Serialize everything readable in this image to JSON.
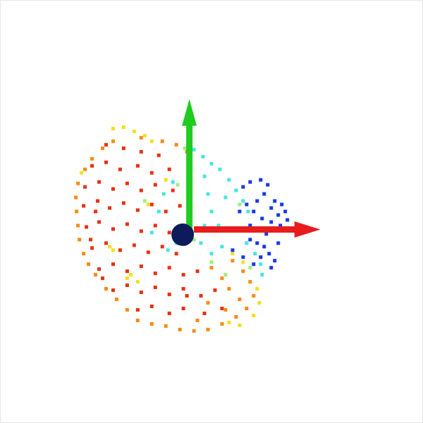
{
  "chart_data": {
    "type": "scatter",
    "marker": "square",
    "tick_labels": false,
    "grid": false,
    "xlim": [
      0,
      600
    ],
    "ylim": [
      600,
      0
    ],
    "series": [
      {
        "color": "#e8300e",
        "x": [
          150,
          175,
          200,
          225,
          130,
          150,
          170,
          195,
          215,
          240,
          120,
          140,
          160,
          180,
          200,
          220,
          245,
          118,
          138,
          155,
          175,
          195,
          215,
          235,
          255,
          122,
          140,
          160,
          180,
          200,
          220,
          240,
          130,
          150,
          170,
          190,
          210,
          230,
          250,
          140,
          160,
          180,
          200,
          220,
          240,
          260,
          280,
          160,
          180,
          200,
          220,
          240,
          260,
          285,
          305,
          195,
          215,
          240,
          260,
          290,
          315,
          135,
          128,
          145,
          265
        ],
        "y": [
          205,
          210,
          215,
          220,
          235,
          230,
          240,
          235,
          245,
          240,
          265,
          258,
          268,
          260,
          270,
          262,
          270,
          292,
          285,
          295,
          288,
          298,
          290,
          300,
          292,
          322,
          315,
          325,
          318,
          328,
          320,
          330,
          352,
          345,
          355,
          348,
          358,
          350,
          360,
          382,
          375,
          385,
          378,
          388,
          380,
          390,
          385,
          412,
          405,
          415,
          408,
          418,
          410,
          420,
          412,
          440,
          435,
          445,
          438,
          445,
          438,
          300,
          340,
          395,
          420
        ]
      },
      {
        "color": "#f88a14",
        "x": [
          120,
          130,
          145,
          160,
          200,
          230,
          250,
          265,
          110,
          107,
          108,
          110,
          112,
          118,
          125,
          135,
          150,
          165,
          180,
          195,
          215,
          235,
          255,
          275,
          295,
          315,
          335,
          350,
          330,
          345,
          355,
          360,
          300,
          315,
          325,
          340,
          295,
          280,
          320
        ],
        "y": [
          240,
          225,
          210,
          200,
          195,
          200,
          205,
          215,
          260,
          280,
          300,
          320,
          340,
          360,
          375,
          390,
          410,
          425,
          440,
          455,
          460,
          463,
          468,
          470,
          468,
          460,
          450,
          438,
          370,
          385,
          400,
          420,
          380,
          395,
          410,
          425,
          430,
          455,
          440
        ]
      },
      {
        "color": "#f2e01e",
        "x": [
          160,
          175,
          190,
          205,
          215,
          115,
          155,
          160,
          185,
          180,
          235,
          210,
          330,
          345,
          365,
          368,
          360,
          340,
          325,
          195
        ],
        "y": [
          182,
          180,
          186,
          192,
          200,
          245,
          350,
          355,
          390,
          395,
          255,
          290,
          360,
          372,
          410,
          430,
          448,
          462,
          458,
          400
        ]
      },
      {
        "color": "#9af27a",
        "x": [
          262,
          252,
          275,
          300,
          340,
          355,
          320,
          205
        ],
        "y": [
          210,
          262,
          340,
          372,
          290,
          380,
          390,
          285
        ]
      },
      {
        "color": "#46e6e0",
        "x": [
          275,
          288,
          300,
          312,
          325,
          335,
          345,
          352,
          355,
          350,
          362,
          370,
          372,
          290,
          295,
          300,
          285,
          290,
          245,
          232,
          225,
          215,
          238,
          250,
          320,
          310,
          315,
          300
        ],
        "y": [
          212,
          222,
          232,
          240,
          255,
          270,
          285,
          300,
          320,
          345,
          360,
          375,
          390,
          250,
          275,
          300,
          345,
          320,
          258,
          275,
          300,
          330,
          355,
          345,
          280,
          320,
          350,
          360
        ]
      },
      {
        "color": "#1638e8",
        "x": [
          345,
          355,
          370,
          380,
          375,
          390,
          400,
          405,
          395,
          385,
          365,
          350,
          360,
          372,
          385,
          398,
          408,
          340,
          355,
          365,
          375,
          382,
          390,
          370,
          360,
          345,
          385,
          395,
          330,
          378,
          368,
          355
        ],
        "y": [
          265,
          258,
          255,
          262,
          275,
          285,
          290,
          300,
          305,
          295,
          285,
          290,
          300,
          310,
          315,
          320,
          312,
          300,
          340,
          345,
          350,
          360,
          370,
          365,
          375,
          365,
          380,
          345,
          355,
          332,
          325,
          320
        ]
      }
    ]
  }
}
